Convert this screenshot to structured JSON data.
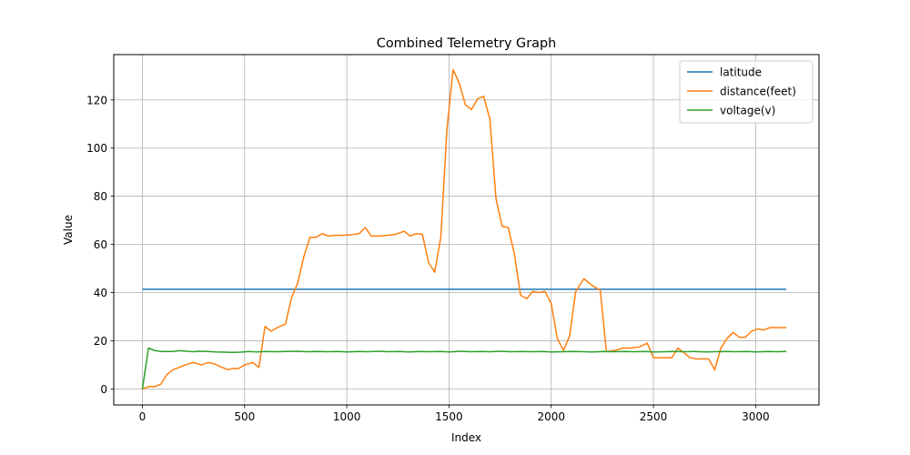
{
  "chart_data": {
    "type": "line",
    "title": "Combined Telemetry Graph",
    "xlabel": "Index",
    "ylabel": "Value",
    "xlim": [
      -140,
      3310
    ],
    "ylim": [
      -6.6,
      138.8
    ],
    "xticks": [
      0,
      500,
      1000,
      1500,
      2000,
      2500,
      3000
    ],
    "yticks": [
      0,
      20,
      40,
      60,
      80,
      100,
      120
    ],
    "grid": true,
    "legend_position": "top-right",
    "series": [
      {
        "name": "latitude",
        "color": "#1f77b4",
        "points": [
          [
            0,
            41.4
          ],
          [
            3150,
            41.4
          ]
        ]
      },
      {
        "name": "distance(feet)",
        "color": "#ff7f0e",
        "points": [
          [
            0,
            0
          ],
          [
            30,
            1
          ],
          [
            60,
            1
          ],
          [
            90,
            2
          ],
          [
            120,
            6
          ],
          [
            150,
            8
          ],
          [
            180,
            9
          ],
          [
            210,
            10
          ],
          [
            250,
            11
          ],
          [
            290,
            10
          ],
          [
            320,
            11
          ],
          [
            350,
            10.5
          ],
          [
            390,
            9
          ],
          [
            420,
            8
          ],
          [
            440,
            8.5
          ],
          [
            470,
            8.5
          ],
          [
            500,
            10
          ],
          [
            540,
            11
          ],
          [
            570,
            9
          ],
          [
            600,
            26
          ],
          [
            630,
            24
          ],
          [
            660,
            25.5
          ],
          [
            700,
            27
          ],
          [
            730,
            38
          ],
          [
            760,
            44
          ],
          [
            790,
            55
          ],
          [
            820,
            63
          ],
          [
            850,
            63
          ],
          [
            880,
            64.5
          ],
          [
            910,
            63.5
          ],
          [
            940,
            63.8
          ],
          [
            980,
            63.8
          ],
          [
            1020,
            64
          ],
          [
            1060,
            64.5
          ],
          [
            1090,
            67
          ],
          [
            1120,
            63.5
          ],
          [
            1160,
            63.5
          ],
          [
            1200,
            63.8
          ],
          [
            1240,
            64.2
          ],
          [
            1280,
            65.5
          ],
          [
            1310,
            63.5
          ],
          [
            1340,
            64.5
          ],
          [
            1370,
            64.2
          ],
          [
            1400,
            52.5
          ],
          [
            1430,
            48.5
          ],
          [
            1460,
            63
          ],
          [
            1490,
            108
          ],
          [
            1520,
            132.5
          ],
          [
            1550,
            127
          ],
          [
            1580,
            118
          ],
          [
            1610,
            116
          ],
          [
            1640,
            120.5
          ],
          [
            1670,
            121.5
          ],
          [
            1700,
            112
          ],
          [
            1730,
            79
          ],
          [
            1760,
            67.5
          ],
          [
            1790,
            67
          ],
          [
            1820,
            56
          ],
          [
            1850,
            39
          ],
          [
            1880,
            37.5
          ],
          [
            1910,
            40.5
          ],
          [
            1940,
            40
          ],
          [
            1970,
            40.5
          ],
          [
            2000,
            35.5
          ],
          [
            2030,
            21
          ],
          [
            2060,
            16
          ],
          [
            2090,
            22
          ],
          [
            2120,
            40.5
          ],
          [
            2160,
            45.8
          ],
          [
            2200,
            43
          ],
          [
            2240,
            41
          ],
          [
            2270,
            15.5
          ],
          [
            2310,
            16
          ],
          [
            2350,
            17
          ],
          [
            2390,
            17
          ],
          [
            2430,
            17.5
          ],
          [
            2470,
            19
          ],
          [
            2500,
            13
          ],
          [
            2530,
            13
          ],
          [
            2560,
            13
          ],
          [
            2590,
            13
          ],
          [
            2620,
            17
          ],
          [
            2650,
            15
          ],
          [
            2680,
            13
          ],
          [
            2710,
            12.5
          ],
          [
            2740,
            12.5
          ],
          [
            2770,
            12.5
          ],
          [
            2800,
            8
          ],
          [
            2830,
            17
          ],
          [
            2860,
            21
          ],
          [
            2890,
            23.5
          ],
          [
            2920,
            21.5
          ],
          [
            2950,
            21.5
          ],
          [
            2980,
            24
          ],
          [
            3010,
            25
          ],
          [
            3040,
            24.5
          ],
          [
            3070,
            25.5
          ],
          [
            3100,
            25.5
          ],
          [
            3150,
            25.5
          ]
        ]
      },
      {
        "name": "voltage(v)",
        "color": "#2ca02c",
        "points": [
          [
            0,
            0
          ],
          [
            30,
            17
          ],
          [
            60,
            16
          ],
          [
            90,
            15.6
          ],
          [
            150,
            15.6
          ],
          [
            180,
            15.9
          ],
          [
            220,
            15.7
          ],
          [
            250,
            15.5
          ],
          [
            280,
            15.7
          ],
          [
            320,
            15.6
          ],
          [
            360,
            15.4
          ],
          [
            400,
            15.3
          ],
          [
            440,
            15.2
          ],
          [
            480,
            15.3
          ],
          [
            520,
            15.6
          ],
          [
            560,
            15.4
          ],
          [
            600,
            15.6
          ],
          [
            660,
            15.5
          ],
          [
            700,
            15.6
          ],
          [
            760,
            15.7
          ],
          [
            800,
            15.5
          ],
          [
            860,
            15.6
          ],
          [
            900,
            15.5
          ],
          [
            960,
            15.6
          ],
          [
            1000,
            15.4
          ],
          [
            1060,
            15.6
          ],
          [
            1100,
            15.5
          ],
          [
            1160,
            15.7
          ],
          [
            1200,
            15.5
          ],
          [
            1260,
            15.6
          ],
          [
            1300,
            15.4
          ],
          [
            1360,
            15.6
          ],
          [
            1400,
            15.5
          ],
          [
            1460,
            15.6
          ],
          [
            1500,
            15.4
          ],
          [
            1560,
            15.7
          ],
          [
            1600,
            15.5
          ],
          [
            1660,
            15.6
          ],
          [
            1700,
            15.5
          ],
          [
            1760,
            15.7
          ],
          [
            1800,
            15.5
          ],
          [
            1860,
            15.6
          ],
          [
            1900,
            15.5
          ],
          [
            1960,
            15.6
          ],
          [
            2000,
            15.4
          ],
          [
            2060,
            15.5
          ],
          [
            2100,
            15.6
          ],
          [
            2160,
            15.5
          ],
          [
            2200,
            15.4
          ],
          [
            2260,
            15.6
          ],
          [
            2300,
            15.5
          ],
          [
            2360,
            15.6
          ],
          [
            2400,
            15.5
          ],
          [
            2460,
            15.6
          ],
          [
            2500,
            15.4
          ],
          [
            2560,
            15.5
          ],
          [
            2600,
            15.6
          ],
          [
            2660,
            15.5
          ],
          [
            2700,
            15.6
          ],
          [
            2760,
            15.4
          ],
          [
            2800,
            15.5
          ],
          [
            2860,
            15.6
          ],
          [
            2900,
            15.5
          ],
          [
            2960,
            15.6
          ],
          [
            3000,
            15.4
          ],
          [
            3060,
            15.6
          ],
          [
            3100,
            15.5
          ],
          [
            3150,
            15.6
          ]
        ]
      }
    ]
  }
}
